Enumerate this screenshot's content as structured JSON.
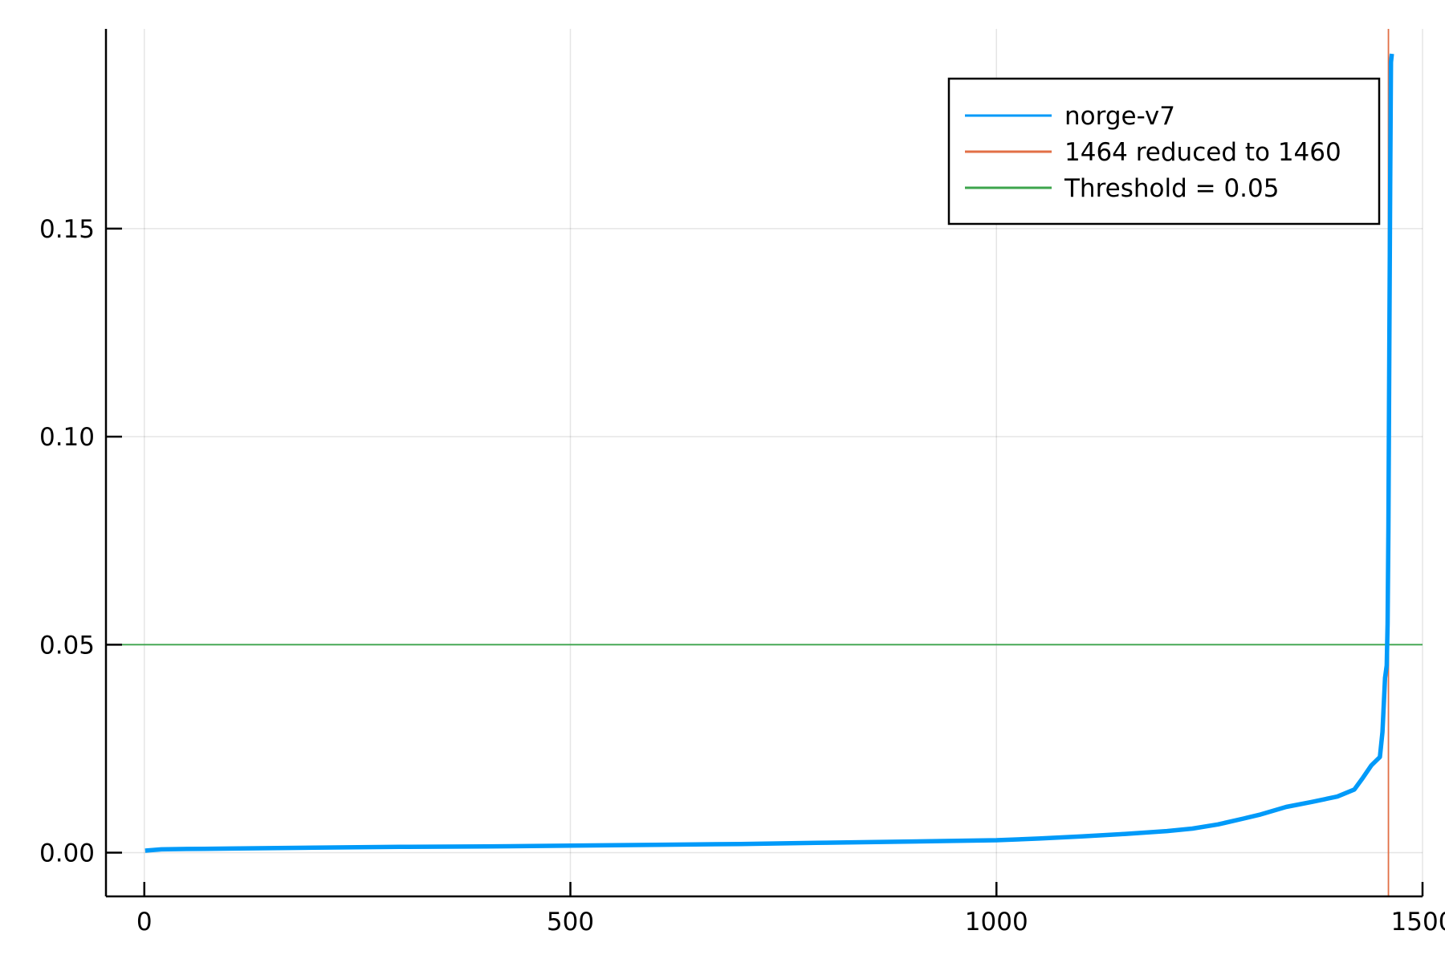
{
  "chart_data": {
    "type": "line",
    "title": "",
    "xlabel": "",
    "ylabel": "",
    "xlim": [
      -45,
      1500
    ],
    "ylim": [
      -0.0105,
      0.198
    ],
    "grid": true,
    "legend_position": "top-right",
    "x_ticks": [
      {
        "value": 0,
        "label": "0"
      },
      {
        "value": 500,
        "label": "500"
      },
      {
        "value": 1000,
        "label": "1000"
      },
      {
        "value": 1500,
        "label": "1500"
      }
    ],
    "y_ticks": [
      {
        "value": 0.0,
        "label": "0.00"
      },
      {
        "value": 0.05,
        "label": "0.05"
      },
      {
        "value": 0.1,
        "label": "0.10"
      },
      {
        "value": 0.15,
        "label": "0.15"
      }
    ],
    "series": [
      {
        "name": "norge-v7",
        "kind": "line",
        "color": "#009af9",
        "x": [
          1,
          20,
          50,
          100,
          200,
          300,
          400,
          500,
          600,
          700,
          800,
          900,
          1000,
          1050,
          1100,
          1150,
          1200,
          1230,
          1260,
          1290,
          1310,
          1340,
          1370,
          1400,
          1420,
          1430,
          1440,
          1450,
          1453,
          1456,
          1458,
          1459,
          1460,
          1461,
          1462,
          1463,
          1464
        ],
        "y": [
          0.0005,
          0.0008,
          0.0009,
          0.001,
          0.0012,
          0.0014,
          0.0015,
          0.0017,
          0.0019,
          0.0021,
          0.0024,
          0.0027,
          0.003,
          0.0034,
          0.0039,
          0.0045,
          0.0052,
          0.0058,
          0.0068,
          0.0082,
          0.0092,
          0.011,
          0.0122,
          0.0135,
          0.0152,
          0.018,
          0.021,
          0.023,
          0.029,
          0.042,
          0.045,
          0.055,
          0.078,
          0.12,
          0.16,
          0.19,
          0.192
        ]
      },
      {
        "name": "1464 reduced to 1460",
        "kind": "vline",
        "color": "#e26f46",
        "x": 1460
      },
      {
        "name": "Threshold = 0.05",
        "kind": "hline",
        "color": "#3da44d",
        "y": 0.05
      }
    ]
  }
}
